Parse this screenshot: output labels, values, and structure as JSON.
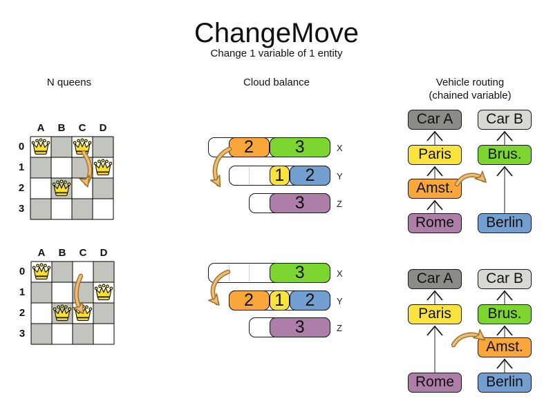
{
  "title": "ChangeMove",
  "subtitle": "Change 1 variable of 1 entity",
  "sections": {
    "nqueens": {
      "title": "N queens"
    },
    "cloud": {
      "title": "Cloud balance"
    },
    "vehicle": {
      "title": "Vehicle routing",
      "subtitle": "(chained variable)"
    }
  },
  "colors": {
    "orange": "#F9A73B",
    "green": "#7CD62F",
    "yellow": "#FAE33F",
    "blue": "#729FCF",
    "purple": "#AD7FA8",
    "dark_gray": "#8A8C87",
    "light_gray": "#D7DAD2",
    "board_gray": "#C2C5BD",
    "arrow": "#EBBB77",
    "arrow_outline": "#9C7124",
    "line_gray": "#858585"
  },
  "nqueens": {
    "column_headers": [
      "A",
      "B",
      "C",
      "D"
    ],
    "row_headers": [
      "0",
      "1",
      "2",
      "3"
    ],
    "before": {
      "queens": [
        {
          "col": "A",
          "row": 0
        },
        {
          "col": "C",
          "row": 0
        },
        {
          "col": "D",
          "row": 1
        },
        {
          "col": "B",
          "row": 2
        }
      ],
      "move": {
        "from": "C0",
        "to": "C2"
      }
    },
    "after": {
      "queens": [
        {
          "col": "A",
          "row": 0
        },
        {
          "col": "D",
          "row": 1
        },
        {
          "col": "B",
          "row": 2
        },
        {
          "col": "C",
          "row": 2
        }
      ],
      "move": {
        "from": "C0",
        "to": "C2"
      }
    }
  },
  "cloud": {
    "before": {
      "rows": [
        {
          "label": "X",
          "empty_slots": 1,
          "segments": [
            {
              "value": "2",
              "color": "orange",
              "slots": 2
            },
            {
              "value": "3",
              "color": "green",
              "slots": 3
            }
          ]
        },
        {
          "label": "Y",
          "empty_slots": 2,
          "segments": [
            {
              "value": "1",
              "color": "yellow",
              "slots": 1
            },
            {
              "value": "2",
              "color": "blue",
              "slots": 2
            }
          ]
        },
        {
          "label": "Z",
          "empty_slots": 1,
          "segments": [
            {
              "value": "3",
              "color": "purple",
              "slots": 3
            }
          ]
        }
      ],
      "move": {
        "moved_process": "2",
        "from": "X",
        "to": "Y"
      }
    },
    "after": {
      "rows": [
        {
          "label": "X",
          "empty_slots": 3,
          "segments": [
            {
              "value": "3",
              "color": "green",
              "slots": 3
            }
          ]
        },
        {
          "label": "Y",
          "empty_slots": 0,
          "segments": [
            {
              "value": "2",
              "color": "orange",
              "slots": 2
            },
            {
              "value": "1",
              "color": "yellow",
              "slots": 1
            },
            {
              "value": "2",
              "color": "blue",
              "slots": 2
            }
          ]
        },
        {
          "label": "Z",
          "empty_slots": 1,
          "segments": [
            {
              "value": "3",
              "color": "purple",
              "slots": 3
            }
          ]
        }
      ],
      "move": {
        "moved_process": "2",
        "from": "X",
        "to": "Y"
      }
    }
  },
  "vehicle": {
    "before": {
      "left": [
        {
          "label": "Car A",
          "color": "dark_gray",
          "row": 0
        },
        {
          "label": "Paris",
          "color": "yellow",
          "row": 1
        },
        {
          "label": "Amst.",
          "color": "orange",
          "row": 2
        },
        {
          "label": "Rome",
          "color": "purple",
          "row": 3
        }
      ],
      "right": [
        {
          "label": "Car B",
          "color": "light_gray",
          "row": 0
        },
        {
          "label": "Brus.",
          "color": "green",
          "row": 1
        },
        {
          "label": "Berlin",
          "color": "blue",
          "row": 3
        }
      ],
      "move": {
        "moved_stop": "Amst.",
        "from_chain": "Car A",
        "to_chain": "Car B"
      }
    },
    "after": {
      "left": [
        {
          "label": "Car A",
          "color": "dark_gray",
          "row": 0
        },
        {
          "label": "Paris",
          "color": "yellow",
          "row": 1
        },
        {
          "label": "Rome",
          "color": "purple",
          "row": 3
        }
      ],
      "right": [
        {
          "label": "Car B",
          "color": "light_gray",
          "row": 0
        },
        {
          "label": "Brus.",
          "color": "green",
          "row": 1
        },
        {
          "label": "Amst.",
          "color": "orange",
          "row": 2
        },
        {
          "label": "Berlin",
          "color": "blue",
          "row": 3
        }
      ],
      "move": {
        "moved_stop": "Amst.",
        "from_chain": "Car A",
        "to_chain": "Car B"
      }
    }
  }
}
